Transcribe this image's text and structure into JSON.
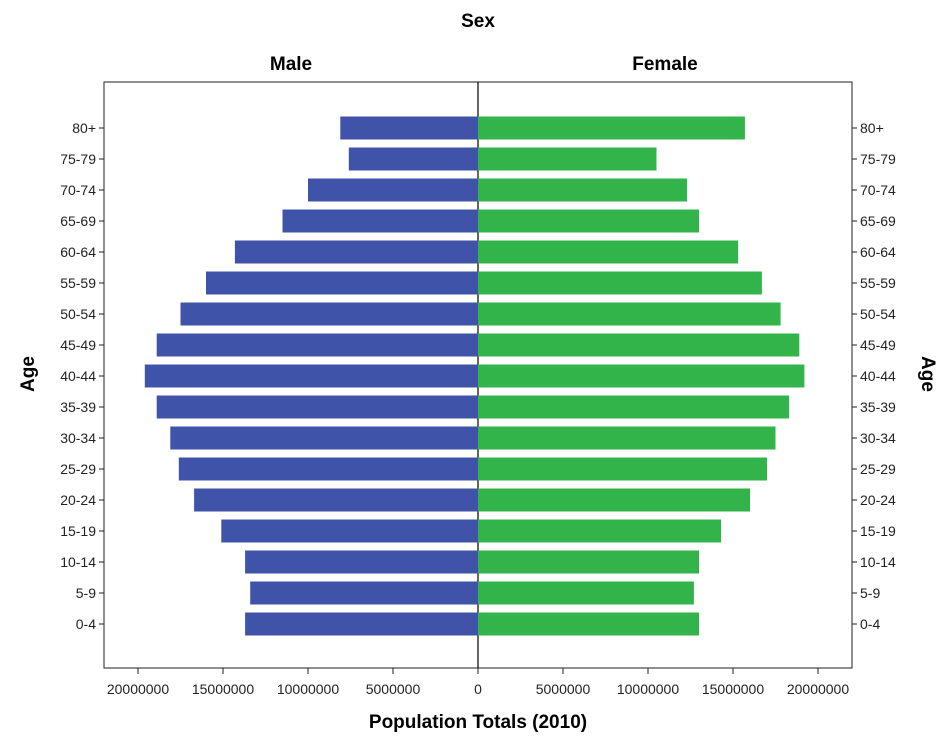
{
  "chart_data": {
    "type": "bar",
    "title": "Sex",
    "panels": [
      "Male",
      "Female"
    ],
    "xlabel": "Population Totals (2010)",
    "ylabel": "Age",
    "x_ticks": [
      "20000000",
      "15000000",
      "10000000",
      "5000000",
      "0",
      "5000000",
      "10000000",
      "15000000",
      "20000000"
    ],
    "xlim": [
      -22000000,
      22000000
    ],
    "categories": [
      "0-4",
      "5-9",
      "10-14",
      "15-19",
      "20-24",
      "25-29",
      "30-34",
      "35-39",
      "40-44",
      "45-49",
      "50-54",
      "55-59",
      "60-64",
      "65-69",
      "70-74",
      "75-79",
      "80+"
    ],
    "series": [
      {
        "name": "Male",
        "color": "#3f54a9",
        "values": [
          13700000,
          13400000,
          13700000,
          15100000,
          16700000,
          17600000,
          18100000,
          18900000,
          19600000,
          18900000,
          17500000,
          16000000,
          14300000,
          11500000,
          10000000,
          7600000,
          8100000
        ]
      },
      {
        "name": "Female",
        "color": "#33b44a",
        "values": [
          13000000,
          12700000,
          13000000,
          14300000,
          16000000,
          17000000,
          17500000,
          18300000,
          19200000,
          18900000,
          17800000,
          16700000,
          15300000,
          13000000,
          12300000,
          10500000,
          15700000
        ]
      }
    ],
    "grid": false
  }
}
